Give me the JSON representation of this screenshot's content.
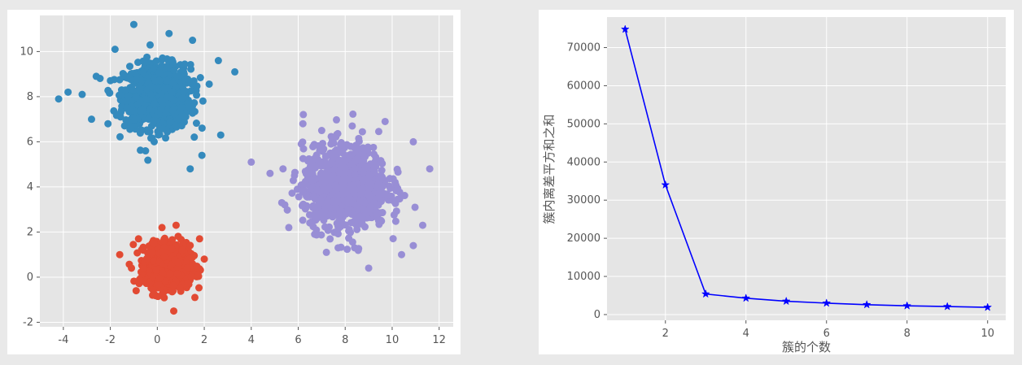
{
  "chart_data": [
    {
      "type": "scatter",
      "title": "",
      "xlabel": "",
      "ylabel": "",
      "xlim": [
        -5,
        12.6
      ],
      "ylim": [
        -2.2,
        11.6
      ],
      "xticks": [
        -4,
        -2,
        0,
        2,
        4,
        6,
        8,
        10,
        12
      ],
      "yticks": [
        -2,
        0,
        2,
        4,
        6,
        8,
        10
      ],
      "grid": true,
      "series": [
        {
          "color": "#348abd",
          "points_approx": 1000,
          "cluster_center": [
            0,
            8
          ],
          "cluster_std": 0.7,
          "sample_points": [
            [
              -4.2,
              7.9
            ],
            [
              -3.8,
              8.2
            ],
            [
              -3.2,
              8.1
            ],
            [
              -2.6,
              8.9
            ],
            [
              -1.8,
              10.1
            ],
            [
              -1.0,
              11.2
            ],
            [
              0.5,
              10.8
            ],
            [
              1.5,
              10.5
            ],
            [
              2.6,
              9.6
            ],
            [
              3.3,
              9.1
            ],
            [
              2.7,
              6.3
            ],
            [
              1.4,
              4.8
            ],
            [
              1.9,
              5.4
            ],
            [
              -0.5,
              5.6
            ],
            [
              -2.1,
              6.8
            ],
            [
              -2.8,
              7.0
            ],
            [
              -1.3,
              7.5
            ]
          ]
        },
        {
          "color": "#e24a33",
          "points_approx": 1000,
          "cluster_center": [
            0.5,
            0.5
          ],
          "cluster_std": 0.45,
          "sample_points": [
            [
              -1.6,
              1.0
            ],
            [
              -0.8,
              1.7
            ],
            [
              0.2,
              2.2
            ],
            [
              0.8,
              2.3
            ],
            [
              1.8,
              1.7
            ],
            [
              2.0,
              0.8
            ],
            [
              1.6,
              -0.9
            ],
            [
              0.7,
              -1.5
            ],
            [
              -0.2,
              -0.8
            ],
            [
              -0.9,
              -0.6
            ],
            [
              -1.1,
              0.4
            ]
          ]
        },
        {
          "color": "#988ed5",
          "points_approx": 1000,
          "cluster_center": [
            8,
            4
          ],
          "cluster_std": 0.9,
          "sample_points": [
            [
              4.0,
              5.1
            ],
            [
              4.8,
              4.6
            ],
            [
              5.3,
              3.3
            ],
            [
              5.6,
              2.2
            ],
            [
              6.2,
              6.8
            ],
            [
              7.0,
              6.5
            ],
            [
              8.3,
              6.7
            ],
            [
              9.7,
              6.9
            ],
            [
              10.9,
              6.0
            ],
            [
              11.6,
              4.8
            ],
            [
              11.3,
              2.3
            ],
            [
              10.9,
              1.4
            ],
            [
              10.4,
              1.0
            ],
            [
              9.0,
              0.4
            ],
            [
              8.4,
              1.3
            ],
            [
              7.7,
              1.3
            ],
            [
              7.2,
              1.1
            ],
            [
              6.7,
              1.9
            ]
          ]
        }
      ]
    },
    {
      "type": "line",
      "title": "",
      "xlabel": "簇的个数",
      "ylabel": "簇内离差平方和之和",
      "x": [
        1,
        2,
        3,
        4,
        5,
        6,
        7,
        8,
        9,
        10
      ],
      "xticks": [
        2,
        4,
        6,
        8,
        10
      ],
      "yticks": [
        0,
        10000,
        20000,
        30000,
        40000,
        50000,
        60000,
        70000
      ],
      "xlim": [
        0.55,
        10.45
      ],
      "ylim": [
        -1500,
        78000
      ],
      "grid": true,
      "series": [
        {
          "color": "#0000ff",
          "marker": "star",
          "values": [
            74800,
            34000,
            5400,
            4300,
            3500,
            3000,
            2600,
            2300,
            2100,
            1900
          ]
        }
      ]
    }
  ]
}
